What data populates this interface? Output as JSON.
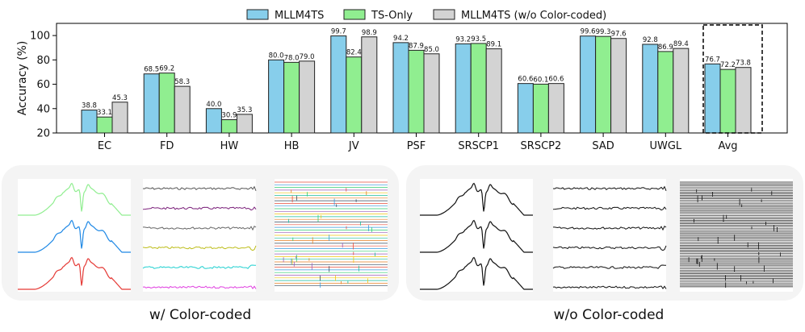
{
  "chart_data": {
    "type": "bar",
    "ylabel": "Accuracy (%)",
    "ylim": [
      20,
      110
    ],
    "yticks": [
      "20",
      "40",
      "60",
      "80",
      "100"
    ],
    "categories": [
      "EC",
      "FD",
      "HW",
      "HB",
      "JV",
      "PSF",
      "SRSCP1",
      "SRSCP2",
      "SAD",
      "UWGL",
      "Avg"
    ],
    "series": [
      {
        "name": "MLLM4TS",
        "color": "#87ceeb",
        "values": [
          38.8,
          68.5,
          40.0,
          80.0,
          99.7,
          94.2,
          93.2,
          60.6,
          99.6,
          92.8,
          76.7
        ],
        "labels": [
          "38.8",
          "68.5",
          "40.0",
          "80.0",
          "99.7",
          "94.2",
          "93.2",
          "60.6",
          "99.6",
          "92.8",
          "76.7"
        ]
      },
      {
        "name": "TS-Only",
        "color": "#90ee90",
        "values": [
          33.1,
          69.2,
          30.9,
          78.0,
          82.4,
          87.9,
          93.5,
          60.1,
          99.3,
          86.9,
          72.2
        ],
        "labels": [
          "33.1",
          "69.2",
          "30.9",
          "78.0",
          "82.4",
          "87.9",
          "93.5",
          "60.1",
          "99.3",
          "86.9",
          "72.2"
        ]
      },
      {
        "name": "MLLM4TS (w/o Color-coded)",
        "color": "#d3d3d3",
        "values": [
          45.3,
          58.3,
          35.3,
          79.0,
          98.9,
          85.0,
          89.1,
          60.6,
          97.6,
          89.4,
          73.8
        ],
        "labels": [
          "45.3",
          "58.3",
          "35.3",
          "79.0",
          "98.9",
          "85.0",
          "89.1",
          "60.6",
          "97.6",
          "89.4",
          "73.8"
        ]
      }
    ],
    "highlight_category": "Avg"
  },
  "panels": {
    "left_caption": "w/ Color-coded",
    "right_caption": "w/o Color-coded",
    "line_colors": [
      "#90ee90",
      "#1e88e5",
      "#e53935"
    ],
    "signal_colors": [
      "#555555",
      "#7a1f7a",
      "#666666",
      "#bdbd1a",
      "#20d0d0",
      "#e040e0"
    ],
    "mono_color": "#111111"
  }
}
